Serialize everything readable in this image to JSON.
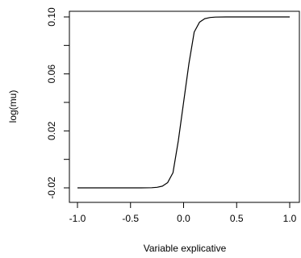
{
  "chart_data": {
    "type": "line",
    "title": "",
    "xlabel": "Variable explicative",
    "ylabel": "log(mu)",
    "xlim": [
      -1.0,
      1.0
    ],
    "ylim": [
      -0.02,
      0.1
    ],
    "x_ticks": [
      -1.0,
      -0.5,
      0.0,
      0.5,
      1.0
    ],
    "x_tick_labels": [
      "-1.0",
      "-0.5",
      "0.0",
      "0.5",
      "1.0"
    ],
    "y_ticks": [
      -0.02,
      0.02,
      0.06,
      0.1
    ],
    "y_tick_labels": [
      "-0.02",
      "0.02",
      "0.06",
      "0.10"
    ],
    "y_minor_ticks": [
      0.0,
      0.04,
      0.08
    ],
    "grid": false,
    "legend": "none",
    "line_color": "#000000",
    "series": [
      {
        "x": [
          -1.0,
          -0.8,
          -0.6,
          -0.4,
          -0.3,
          -0.25,
          -0.2,
          -0.15,
          -0.1,
          -0.05,
          0.0,
          0.05,
          0.1,
          0.15,
          0.2,
          0.25,
          0.3,
          0.4,
          0.6,
          0.8,
          1.0
        ],
        "values": [
          -0.02,
          -0.02,
          -0.02,
          -0.02,
          -0.0199,
          -0.0196,
          -0.0188,
          -0.0163,
          -0.0094,
          0.0129,
          0.04,
          0.0671,
          0.0894,
          0.0963,
          0.0988,
          0.0996,
          0.0999,
          0.1,
          0.1,
          0.1,
          0.1
        ]
      }
    ]
  }
}
